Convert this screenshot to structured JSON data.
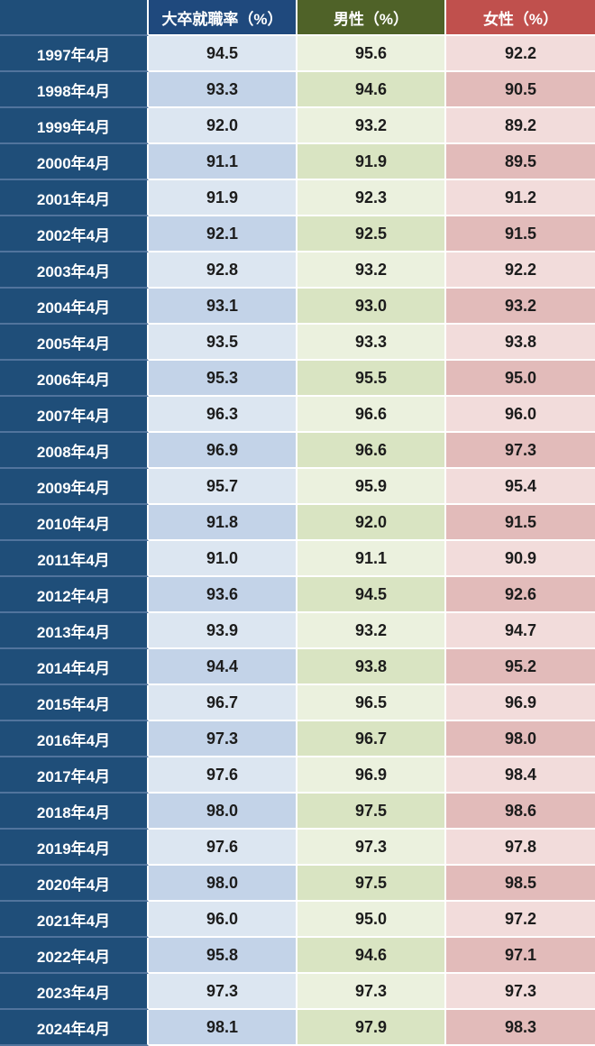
{
  "table": {
    "header": {
      "corner": "",
      "overall": "大卒就職率（%）",
      "male": "男性（%）",
      "female": "女性（%）"
    },
    "rows": [
      {
        "year": "1997年4月",
        "overall": "94.5",
        "male": "95.6",
        "female": "92.2"
      },
      {
        "year": "1998年4月",
        "overall": "93.3",
        "male": "94.6",
        "female": "90.5"
      },
      {
        "year": "1999年4月",
        "overall": "92.0",
        "male": "93.2",
        "female": "89.2"
      },
      {
        "year": "2000年4月",
        "overall": "91.1",
        "male": "91.9",
        "female": "89.5"
      },
      {
        "year": "2001年4月",
        "overall": "91.9",
        "male": "92.3",
        "female": "91.2"
      },
      {
        "year": "2002年4月",
        "overall": "92.1",
        "male": "92.5",
        "female": "91.5"
      },
      {
        "year": "2003年4月",
        "overall": "92.8",
        "male": "93.2",
        "female": "92.2"
      },
      {
        "year": "2004年4月",
        "overall": "93.1",
        "male": "93.0",
        "female": "93.2"
      },
      {
        "year": "2005年4月",
        "overall": "93.5",
        "male": "93.3",
        "female": "93.8"
      },
      {
        "year": "2006年4月",
        "overall": "95.3",
        "male": "95.5",
        "female": "95.0"
      },
      {
        "year": "2007年4月",
        "overall": "96.3",
        "male": "96.6",
        "female": "96.0"
      },
      {
        "year": "2008年4月",
        "overall": "96.9",
        "male": "96.6",
        "female": "97.3"
      },
      {
        "year": "2009年4月",
        "overall": "95.7",
        "male": "95.9",
        "female": "95.4"
      },
      {
        "year": "2010年4月",
        "overall": "91.8",
        "male": "92.0",
        "female": "91.5"
      },
      {
        "year": "2011年4月",
        "overall": "91.0",
        "male": "91.1",
        "female": "90.9"
      },
      {
        "year": "2012年4月",
        "overall": "93.6",
        "male": "94.5",
        "female": "92.6"
      },
      {
        "year": "2013年4月",
        "overall": "93.9",
        "male": "93.2",
        "female": "94.7"
      },
      {
        "year": "2014年4月",
        "overall": "94.4",
        "male": "93.8",
        "female": "95.2"
      },
      {
        "year": "2015年4月",
        "overall": "96.7",
        "male": "96.5",
        "female": "96.9"
      },
      {
        "year": "2016年4月",
        "overall": "97.3",
        "male": "96.7",
        "female": "98.0"
      },
      {
        "year": "2017年4月",
        "overall": "97.6",
        "male": "96.9",
        "female": "98.4"
      },
      {
        "year": "2018年4月",
        "overall": "98.0",
        "male": "97.5",
        "female": "98.6"
      },
      {
        "year": "2019年4月",
        "overall": "97.6",
        "male": "97.3",
        "female": "97.8"
      },
      {
        "year": "2020年4月",
        "overall": "98.0",
        "male": "97.5",
        "female": "98.5"
      },
      {
        "year": "2021年4月",
        "overall": "96.0",
        "male": "95.0",
        "female": "97.2"
      },
      {
        "year": "2022年4月",
        "overall": "95.8",
        "male": "94.6",
        "female": "97.1"
      },
      {
        "year": "2023年4月",
        "overall": "97.3",
        "male": "97.3",
        "female": "97.3"
      },
      {
        "year": "2024年4月",
        "overall": "98.1",
        "male": "97.9",
        "female": "98.3"
      }
    ]
  },
  "chart_data": {
    "type": "table",
    "categories": [
      "1997年4月",
      "1998年4月",
      "1999年4月",
      "2000年4月",
      "2001年4月",
      "2002年4月",
      "2003年4月",
      "2004年4月",
      "2005年4月",
      "2006年4月",
      "2007年4月",
      "2008年4月",
      "2009年4月",
      "2010年4月",
      "2011年4月",
      "2012年4月",
      "2013年4月",
      "2014年4月",
      "2015年4月",
      "2016年4月",
      "2017年4月",
      "2018年4月",
      "2019年4月",
      "2020年4月",
      "2021年4月",
      "2022年4月",
      "2023年4月",
      "2024年4月"
    ],
    "columns": [
      "大卒就職率（%）",
      "男性（%）",
      "女性（%）"
    ],
    "series": [
      {
        "name": "大卒就職率（%）",
        "values": [
          94.5,
          93.3,
          92.0,
          91.1,
          91.9,
          92.1,
          92.8,
          93.1,
          93.5,
          95.3,
          96.3,
          96.9,
          95.7,
          91.8,
          91.0,
          93.6,
          93.9,
          94.4,
          96.7,
          97.3,
          97.6,
          98.0,
          97.6,
          98.0,
          96.0,
          95.8,
          97.3,
          98.1
        ]
      },
      {
        "name": "男性（%）",
        "values": [
          95.6,
          94.6,
          93.2,
          91.9,
          92.3,
          92.5,
          93.2,
          93.0,
          93.3,
          95.5,
          96.6,
          96.6,
          95.9,
          92.0,
          91.1,
          94.5,
          93.2,
          93.8,
          96.5,
          96.7,
          96.9,
          97.5,
          97.3,
          97.5,
          95.0,
          94.6,
          97.3,
          97.9
        ]
      },
      {
        "name": "女性（%）",
        "values": [
          92.2,
          90.5,
          89.2,
          89.5,
          91.2,
          91.5,
          92.2,
          93.2,
          93.8,
          95.0,
          96.0,
          97.3,
          95.4,
          91.5,
          90.9,
          92.6,
          94.7,
          95.2,
          96.9,
          98.0,
          98.4,
          98.6,
          97.8,
          98.5,
          97.2,
          97.1,
          97.3,
          98.3
        ]
      }
    ]
  },
  "colors": {
    "label_blue": "#1F4E79",
    "header_blue": "#1F497D",
    "header_olive": "#4F6228",
    "header_red": "#C0504D",
    "row_blue_light": "#DCE6F1",
    "row_blue_dark": "#C3D3E8",
    "row_green_light": "#EBF1DE",
    "row_green_dark": "#D9E4C2",
    "row_pink_light": "#F2DCDB",
    "row_pink_dark": "#E2BBBA"
  }
}
